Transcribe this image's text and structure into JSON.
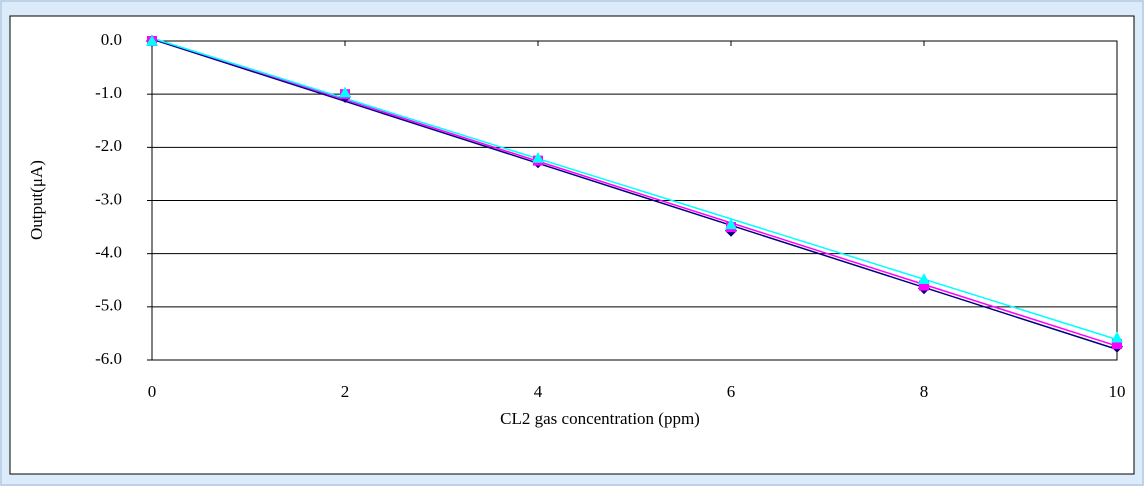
{
  "chart_data": {
    "type": "scatter",
    "x_label": "CL2 gas concentration (ppm)",
    "y_label": "Output(μA)",
    "x": [
      0,
      2,
      4,
      6,
      8,
      10
    ],
    "series": [
      {
        "color": "#000080",
        "marker": "diamond",
        "values": [
          0,
          -1.05,
          -2.28,
          -3.57,
          -4.65,
          -5.75
        ]
      },
      {
        "color": "#ff00ff",
        "marker": "square",
        "values": [
          0,
          -1.0,
          -2.25,
          -3.5,
          -4.6,
          -5.7
        ]
      },
      {
        "color": "#00ffff",
        "marker": "triangle",
        "values": [
          0,
          -0.97,
          -2.2,
          -3.45,
          -4.48,
          -5.58
        ]
      }
    ],
    "trendline": "linear",
    "xlim": [
      0,
      10
    ],
    "xticks": [
      0,
      2,
      4,
      6,
      8,
      10
    ],
    "ylim": [
      -6,
      0
    ],
    "yticks": [
      {
        "value": 0,
        "label": "0.0"
      },
      {
        "value": -1,
        "label": "-1.0"
      },
      {
        "value": -2,
        "label": "-2.0"
      },
      {
        "value": -3,
        "label": "-3.0"
      },
      {
        "value": -4,
        "label": "-4.0"
      },
      {
        "value": -5,
        "label": "-5.0"
      },
      {
        "value": -6,
        "label": "-6.0"
      }
    ],
    "grid": true
  }
}
